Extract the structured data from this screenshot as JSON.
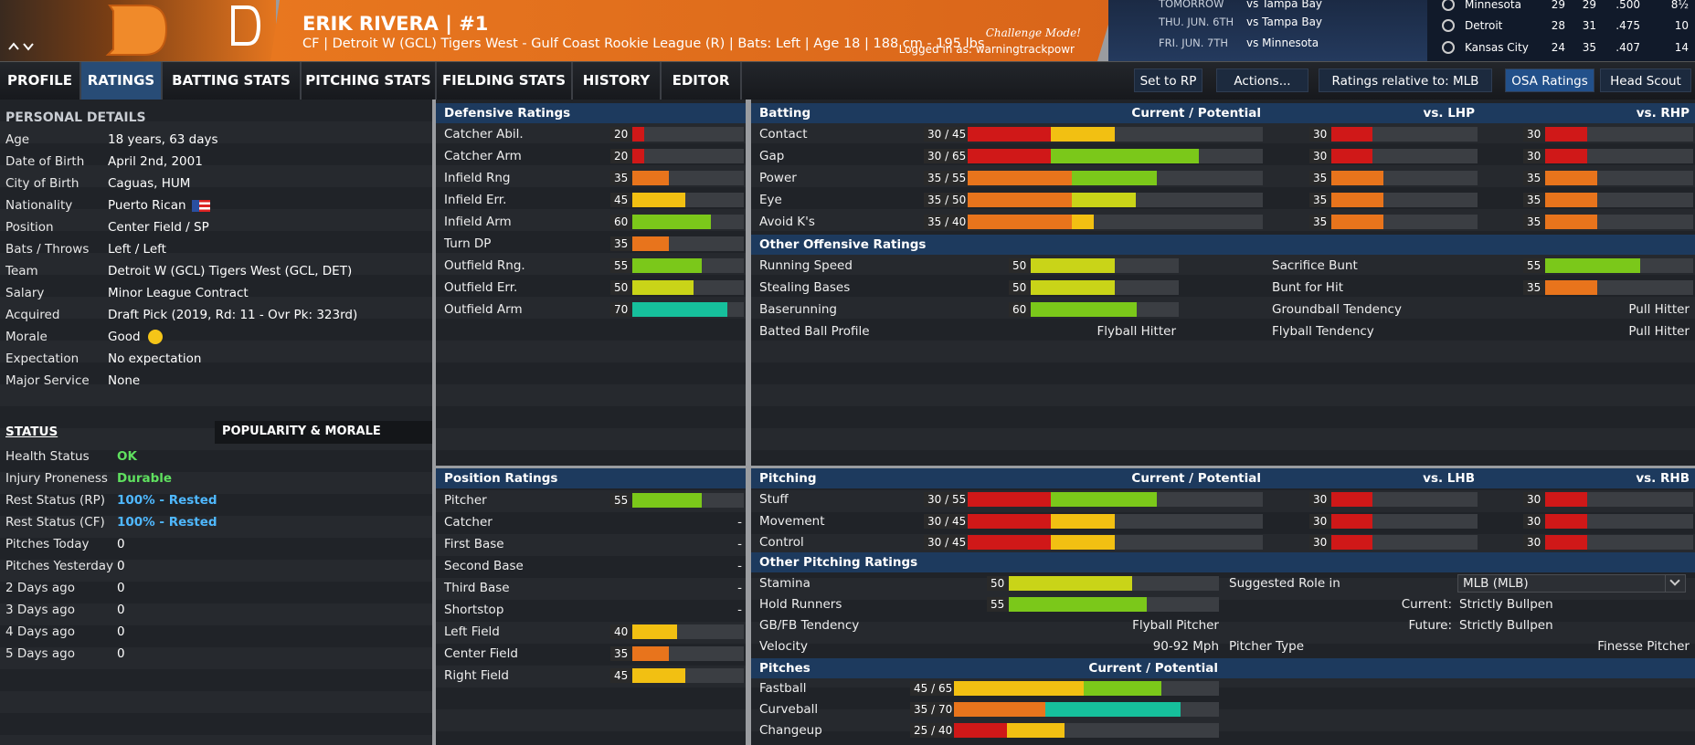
{
  "header": {
    "name": "ERIK RIVERA  |  #1",
    "subtitle": "CF | Detroit W (GCL) Tigers West - Gulf Coast Rookie League (R)  |  Bats: Left  |  Age 18  |  188 cm - 195 lbs",
    "challenge": "Challenge Mode!",
    "logged_in": "Logged in as: warningtrackpowr"
  },
  "schedule": [
    {
      "day": "TOMORROW",
      "opponent": "vs Tampa Bay"
    },
    {
      "day": "THU. JUN. 6TH",
      "opponent": "vs Tampa Bay"
    },
    {
      "day": "FRI. JUN. 7TH",
      "opponent": "vs Minnesota"
    }
  ],
  "standings": [
    {
      "team": "Minnesota",
      "w": 29,
      "l": 29,
      "pct": ".500",
      "gb": "8½"
    },
    {
      "team": "Detroit",
      "w": 28,
      "l": 31,
      "pct": ".475",
      "gb": 10
    },
    {
      "team": "Kansas City",
      "w": 24,
      "l": 35,
      "pct": ".407",
      "gb": 14
    }
  ],
  "tabs": [
    "PROFILE",
    "RATINGS",
    "BATTING STATS",
    "PITCHING STATS",
    "FIELDING STATS",
    "HISTORY",
    "EDITOR"
  ],
  "active_tab": 1,
  "buttons": [
    "Set to RP",
    "Actions...",
    "Ratings relative to: MLB",
    "OSA Ratings",
    "Head Scout"
  ],
  "active_button": 3,
  "personal": {
    "title": "PERSONAL DETAILS",
    "rows": [
      {
        "label": "Age",
        "value": "18 years, 63 days"
      },
      {
        "label": "Date of Birth",
        "value": "April 2nd, 2001"
      },
      {
        "label": "City of Birth",
        "value": "Caguas, HUM"
      },
      {
        "label": "Nationality",
        "value": "Puerto Rican"
      },
      {
        "label": "Position",
        "value": "Center Field / SP"
      },
      {
        "label": "Bats / Throws",
        "value": "Left / Left"
      },
      {
        "label": "Team",
        "value": "Detroit W (GCL) Tigers West (GCL, DET)"
      },
      {
        "label": "Salary",
        "value": "Minor League Contract"
      },
      {
        "label": "Acquired",
        "value": "Draft Pick (2019, Rd: 11 - Ovr Pk: 323rd)"
      },
      {
        "label": "Morale",
        "value": "Good"
      },
      {
        "label": "Expectation",
        "value": "No expectation"
      },
      {
        "label": "Major Service",
        "value": "None"
      }
    ]
  },
  "status": {
    "tabs": [
      "STATUS",
      "POPULARITY & MORALE"
    ],
    "rows": [
      {
        "label": "Health Status",
        "value": "OK",
        "color": "#5fe05f"
      },
      {
        "label": "Injury Proneness",
        "value": "Durable",
        "color": "#5fe05f"
      },
      {
        "label": "Rest Status (RP)",
        "value": "100% - Rested",
        "color": "#4fb8ff"
      },
      {
        "label": "Rest Status (CF)",
        "value": "100% - Rested",
        "color": "#4fb8ff"
      },
      {
        "label": "Pitches Today",
        "value": 0
      },
      {
        "label": "Pitches Yesterday",
        "value": 0
      },
      {
        "label": "2 Days ago",
        "value": 0
      },
      {
        "label": "3 Days ago",
        "value": 0
      },
      {
        "label": "4 Days ago",
        "value": 0
      },
      {
        "label": "5 Days ago",
        "value": 0
      }
    ]
  },
  "defensive": {
    "title": "Defensive Ratings",
    "rows": [
      {
        "label": "Catcher Abil.",
        "value": 20
      },
      {
        "label": "Catcher Arm",
        "value": 20
      },
      {
        "label": "Infield Rng",
        "value": 35
      },
      {
        "label": "Infield Err.",
        "value": 45
      },
      {
        "label": "Infield Arm",
        "value": 60
      },
      {
        "label": "Turn DP",
        "value": 35
      },
      {
        "label": "Outfield Rng.",
        "value": 55
      },
      {
        "label": "Outfield Err.",
        "value": 50
      },
      {
        "label": "Outfield Arm",
        "value": 70
      }
    ]
  },
  "position": {
    "title": "Position Ratings",
    "rows": [
      {
        "label": "Pitcher",
        "value": 55
      },
      {
        "label": "Catcher",
        "value": "-"
      },
      {
        "label": "First Base",
        "value": "-"
      },
      {
        "label": "Second Base",
        "value": "-"
      },
      {
        "label": "Third Base",
        "value": "-"
      },
      {
        "label": "Shortstop",
        "value": "-"
      },
      {
        "label": "Left Field",
        "value": 40
      },
      {
        "label": "Center Field",
        "value": 35
      },
      {
        "label": "Right Field",
        "value": 45
      }
    ]
  },
  "batting": {
    "title": "Batting",
    "headers": [
      "Current / Potential",
      "vs. LHP",
      "vs. RHP"
    ],
    "rows": [
      {
        "label": "Contact",
        "text": "30 / 45",
        "current": 30,
        "potential": 45,
        "vs_left": 30,
        "vs_right": 30
      },
      {
        "label": "Gap",
        "text": "30 / 65",
        "current": 30,
        "potential": 65,
        "vs_left": 30,
        "vs_right": 30
      },
      {
        "label": "Power",
        "text": "35 / 55",
        "current": 35,
        "potential": 55,
        "vs_left": 35,
        "vs_right": 35
      },
      {
        "label": "Eye",
        "text": "35 / 50",
        "current": 35,
        "potential": 50,
        "vs_left": 35,
        "vs_right": 35
      },
      {
        "label": "Avoid K's",
        "text": "35 / 40",
        "current": 35,
        "potential": 40,
        "vs_left": 35,
        "vs_right": 35
      }
    ]
  },
  "other_offense": {
    "title": "Other Offensive Ratings",
    "left": [
      {
        "label": "Running Speed",
        "value": 50
      },
      {
        "label": "Stealing Bases",
        "value": 50
      },
      {
        "label": "Baserunning",
        "value": 60
      },
      {
        "label": "Batted Ball Profile",
        "value": "Flyball Hitter"
      }
    ],
    "right": [
      {
        "label": "Sacrifice Bunt",
        "value": 55
      },
      {
        "label": "Bunt for Hit",
        "value": 35
      },
      {
        "label": "Groundball Tendency",
        "value": "Pull Hitter"
      },
      {
        "label": "Flyball Tendency",
        "value": "Pull Hitter"
      }
    ]
  },
  "pitching": {
    "title": "Pitching",
    "headers": [
      "Current / Potential",
      "vs. LHB",
      "vs. RHB"
    ],
    "rows": [
      {
        "label": "Stuff",
        "text": "30 / 55",
        "current": 30,
        "potential": 55,
        "vs_left": 30,
        "vs_right": 30
      },
      {
        "label": "Movement",
        "text": "30 / 45",
        "current": 30,
        "potential": 45,
        "vs_left": 30,
        "vs_right": 30
      },
      {
        "label": "Control",
        "text": "30 / 45",
        "current": 30,
        "potential": 45,
        "vs_left": 30,
        "vs_right": 30
      }
    ]
  },
  "other_pitching": {
    "title": "Other Pitching Ratings",
    "left": [
      {
        "label": "Stamina",
        "value": 50
      },
      {
        "label": "Hold Runners",
        "value": 55
      },
      {
        "label": "GB/FB Tendency",
        "value": "Flyball Pitcher"
      },
      {
        "label": "Velocity",
        "value": "90-92 Mph"
      }
    ],
    "suggested_role": {
      "label": "Suggested Role in",
      "value": "MLB (MLB)"
    },
    "right": [
      {
        "label": "Current:",
        "value": "Strictly Bullpen"
      },
      {
        "label": "Future:",
        "value": "Strictly Bullpen"
      }
    ],
    "pitcher_type": {
      "label": "Pitcher Type",
      "value": "Finesse Pitcher"
    }
  },
  "pitches": {
    "title": "Pitches",
    "header": "Current / Potential",
    "rows": [
      {
        "label": "Fastball",
        "text": "45 / 65",
        "current": 45,
        "potential": 65
      },
      {
        "label": "Curveball",
        "text": "35 / 70",
        "current": 35,
        "potential": 70
      },
      {
        "label": "Changeup",
        "text": "25 / 40",
        "current": 25,
        "potential": 40
      }
    ]
  }
}
